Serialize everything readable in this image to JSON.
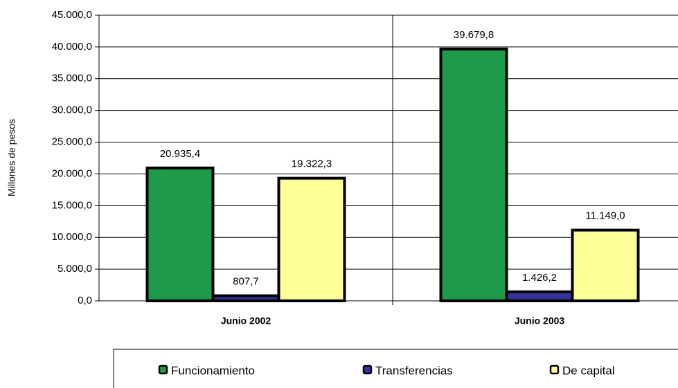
{
  "chart_data": {
    "type": "bar",
    "y_label": "Millones de pesos",
    "categories": [
      "Junio 2002",
      "Junio 2003"
    ],
    "series": [
      {
        "name": "Funcionamiento",
        "color": "#1e9a4a",
        "values": [
          20935.4,
          39679.8
        ],
        "value_labels": [
          "20.935,4",
          "39.679,8"
        ]
      },
      {
        "name": "Transferencias",
        "color": "#33339a",
        "values": [
          807.7,
          1426.2
        ],
        "value_labels": [
          "807,7",
          "1.426,2"
        ]
      },
      {
        "name": "De capital",
        "color": "#ffff99",
        "values": [
          19322.3,
          11149.0
        ],
        "value_labels": [
          "19.322,3",
          "11.149,0"
        ]
      }
    ],
    "ylim": [
      0,
      45000
    ],
    "yticks": [
      {
        "value": 0,
        "label": "0,0"
      },
      {
        "value": 5000,
        "label": "5.000,0"
      },
      {
        "value": 10000,
        "label": "10.000,0"
      },
      {
        "value": 15000,
        "label": "15.000,0"
      },
      {
        "value": 20000,
        "label": "20.000,0"
      },
      {
        "value": 25000,
        "label": "25.000,0"
      },
      {
        "value": 30000,
        "label": "30.000,0"
      },
      {
        "value": 35000,
        "label": "35.000,0"
      },
      {
        "value": 40000,
        "label": "40.000,0"
      },
      {
        "value": 45000,
        "label": "45.000,0"
      }
    ],
    "grid": true,
    "legend": "bottom"
  }
}
